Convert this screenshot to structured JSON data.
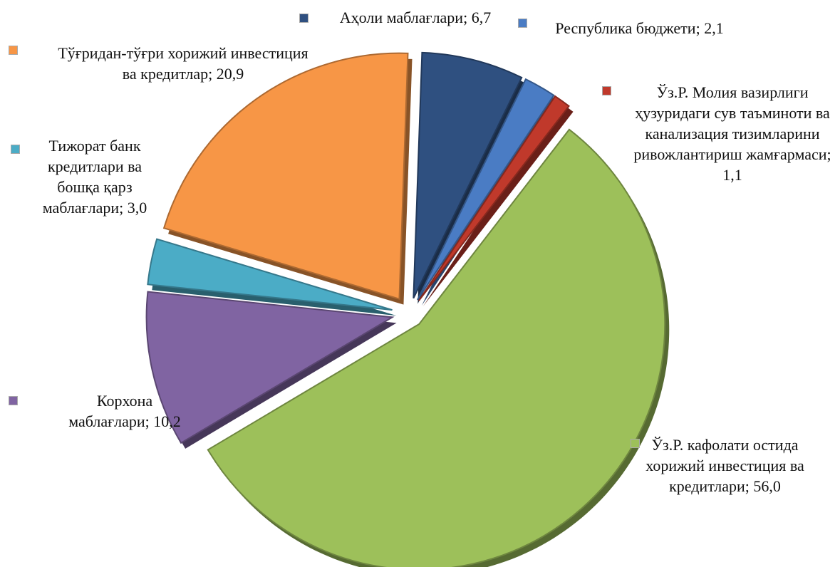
{
  "chart_data": {
    "type": "pie",
    "categories": [
      "Аҳоли маблағлари",
      "Республика бюджети",
      "Ўз.Р. Молия вазирлиги ҳузуридаги сув таъминоти ва канализация тизимларини ривожлантириш жамғармаси",
      "Ўз.Р. кафолати остида хорижий инвестиция ва кредитлари",
      "Корхона маблағлари",
      "Тижорат банк кредитлари ва бошқа қарз маблағлари",
      "Тўғридан-тўғри хорижий инвестиция ва кредитлар"
    ],
    "values": [
      6.7,
      2.1,
      1.1,
      56.0,
      10.2,
      3.0,
      20.9
    ],
    "value_labels": [
      "6,7",
      "2,1",
      "1,1",
      "56,0",
      "10,2",
      "3,0",
      "20,9"
    ],
    "label_separator": "; ",
    "colors": [
      "#2f5080",
      "#4a7cc4",
      "#c0392b",
      "#9dc05a",
      "#8064a2",
      "#4bacc6",
      "#f79646"
    ]
  }
}
